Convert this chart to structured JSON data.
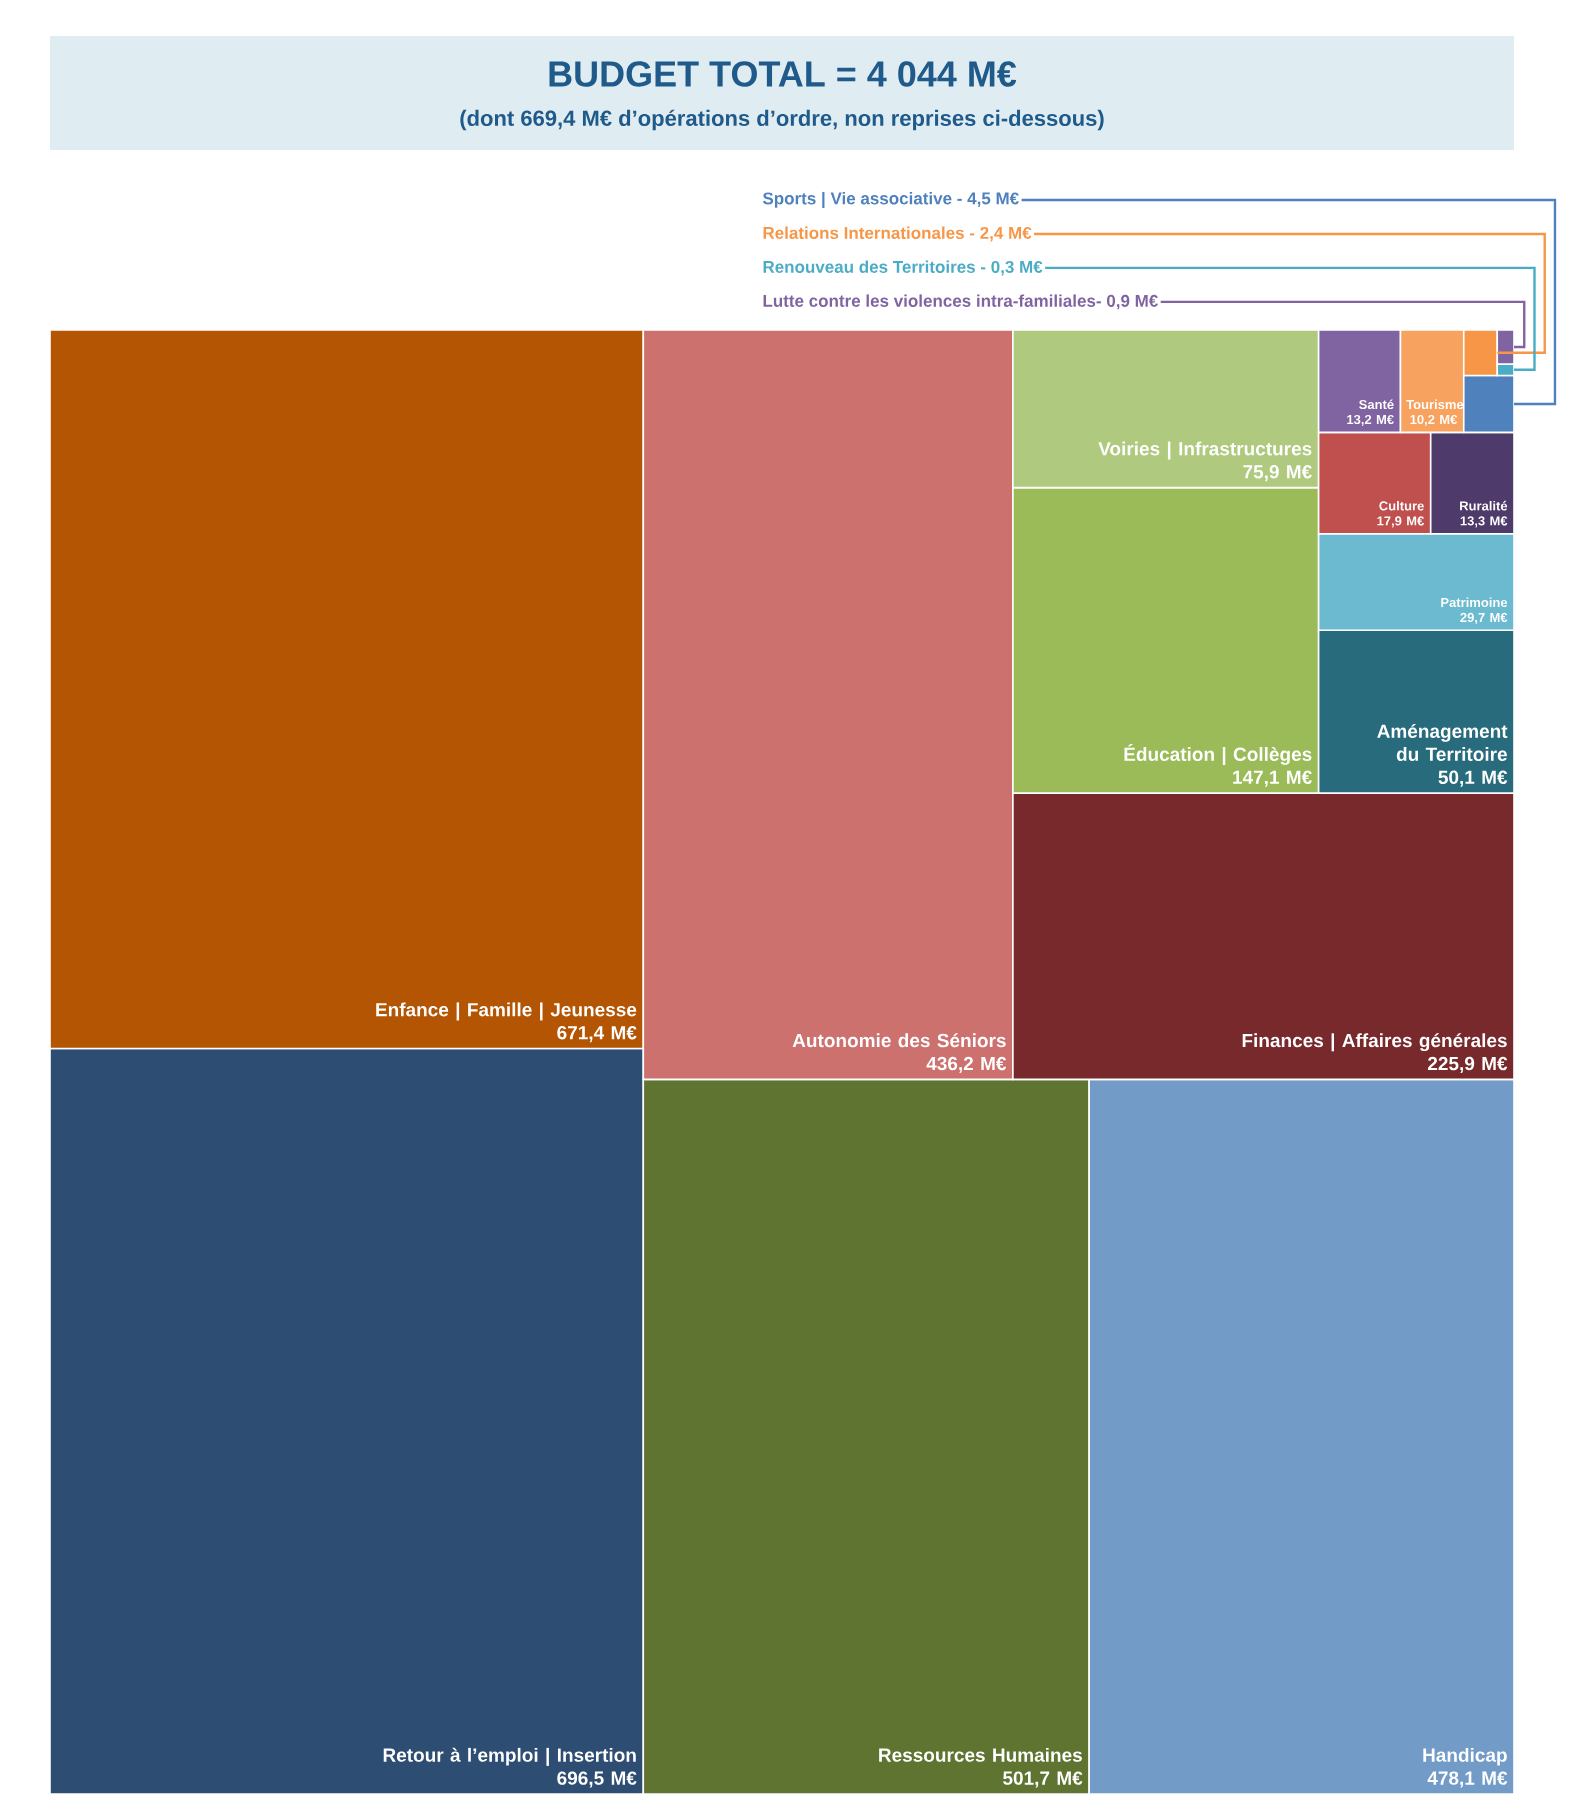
{
  "chart_data": {
    "type": "other",
    "title": "BUDGET TOTAL = 4 044 M€",
    "subtitle": "(dont 669,4 M€ d’opérations d’ordre, non reprises ci-dessous)",
    "categories": [
      "Retour à l’emploi | Insertion",
      "Enfance | Famille | Jeunesse",
      "Ressources Humaines",
      "Handicap",
      "Autonomie des Séniors",
      "Finances | Affaires générales",
      "Éducation | Collèges",
      "Voiries | Infrastructures",
      "Aménagement du Territoire",
      "Patrimoine",
      "Culture",
      "Ruralité",
      "Santé",
      "Tourisme",
      "Sports | Vie associative -",
      "Relations Internationales -",
      "Renouveau des Territoires -",
      "Lutte contre les violences intra-familiales-"
    ],
    "values": [
      696.5,
      671.4,
      501.7,
      478.1,
      436.2,
      225.9,
      147.1,
      75.9,
      50.1,
      29.7,
      17.9,
      13.3,
      13.2,
      10.2,
      4.5,
      2.4,
      0.3,
      0.9
    ],
    "value_labels": [
      "696,5 M€",
      "671,4 M€",
      "501,7 M€",
      "478,1 M€",
      "436,2 M€",
      "225,9 M€",
      "147,1 M€",
      "75,9 M€",
      "50,1 M€",
      "29,7 M€",
      "17,9 M€",
      "13,3 M€",
      "13,2 M€",
      "10,2 M€",
      "4,5 M€",
      "2,4 M€",
      "0,3 M€",
      "0,9 M€"
    ],
    "colors": [
      "#2e4d73",
      "#b45504",
      "#5f7430",
      "#729bc8",
      "#cc716e",
      "#77292b",
      "#9bbb59",
      "#afc97f",
      "#276b7d",
      "#6cbad0",
      "#c0504d",
      "#4f3b6b",
      "#8064a2",
      "#f7a35f",
      "#4f81bd",
      "#f79646",
      "#4bacc6",
      "#8064a2"
    ]
  }
}
